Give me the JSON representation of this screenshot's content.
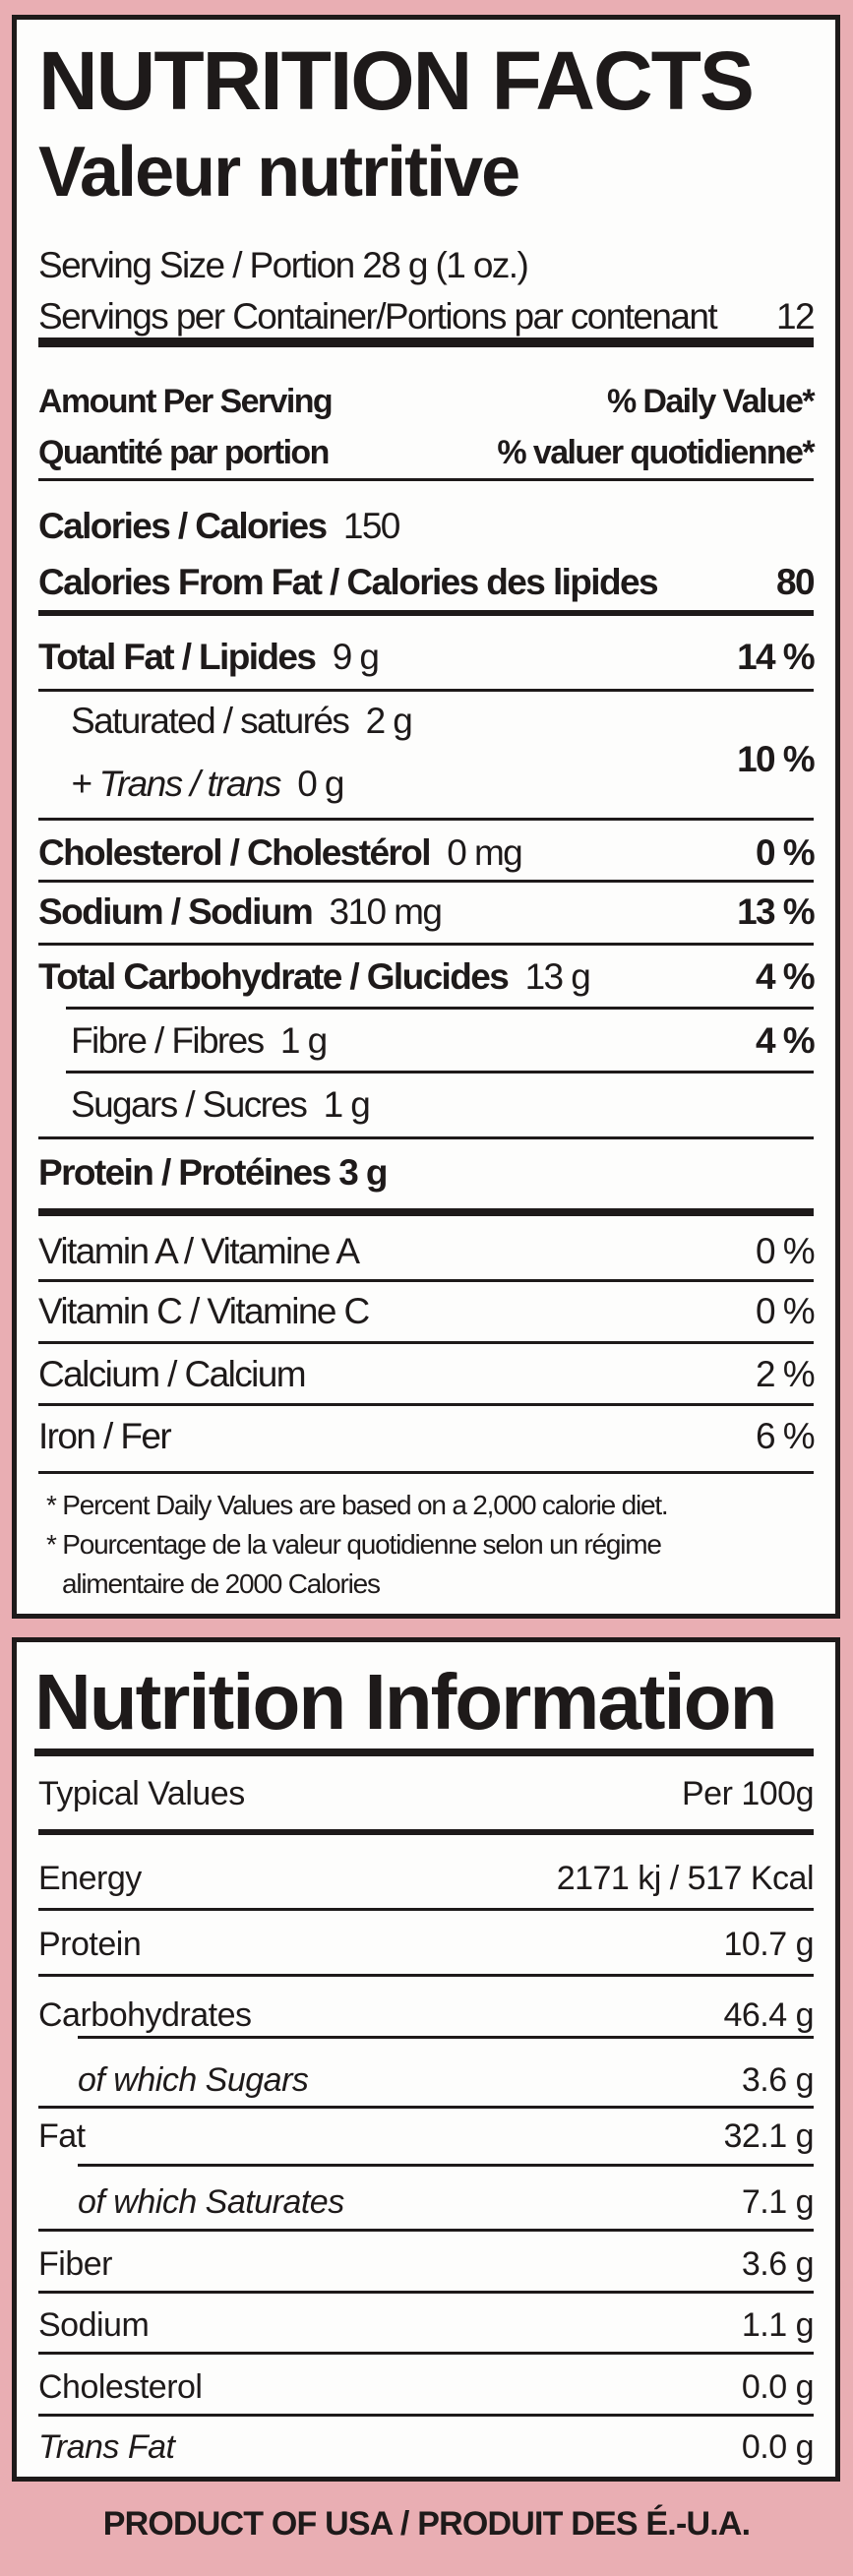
{
  "facts": {
    "title": "NUTRITION FACTS",
    "title_fr": "Valeur nutritive",
    "serving_size": "Serving Size / Portion 28 g (1 oz.)",
    "servings_label": "Servings per Container/Portions par contenant",
    "servings_value": "12",
    "amount_label": "Amount Per Serving",
    "dv_label": "% Daily Value*",
    "amount_label_fr": "Quantité par portion",
    "dv_label_fr": "% valuer quotidienne*",
    "calories_label": "Calories / Calories",
    "calories_value": "150",
    "fat_cal_label": "Calories From Fat / Calories des lipides",
    "fat_cal_value": "80",
    "rows": [
      {
        "label": "Total Fat / Lipides",
        "amount": "9 g",
        "dv": "14 %"
      },
      {
        "label": "Saturated / saturés",
        "amount": "2 g",
        "dv": "10 %"
      },
      {
        "label": "+ Trans / trans",
        "amount": "0 g"
      },
      {
        "label": "Cholesterol / Cholestérol",
        "amount": "0 mg",
        "dv": "0 %"
      },
      {
        "label": "Sodium / Sodium",
        "amount": "310 mg",
        "dv": "13 %"
      },
      {
        "label": "Total Carbohydrate / Glucides",
        "amount": "13 g",
        "dv": "4 %"
      },
      {
        "label": "Fibre / Fibres",
        "amount": "1 g",
        "dv": "4 %"
      },
      {
        "label": "Sugars / Sucres",
        "amount": "1 g"
      },
      {
        "label": "Protein / Protéines",
        "amount": "3 g"
      }
    ],
    "vitamins": [
      {
        "label": "Vitamin A / Vitamine A",
        "dv": "0 %"
      },
      {
        "label": "Vitamin C / Vitamine C",
        "dv": "0 %"
      },
      {
        "label": "Calcium / Calcium",
        "dv": "2 %"
      },
      {
        "label": "Iron / Fer",
        "dv": "6 %"
      }
    ],
    "footnote_en": "* Percent Daily Values are based on a 2,000 calorie diet.",
    "footnote_fr_1": "* Pourcentage de la valeur quotidienne selon un régime",
    "footnote_fr_2": "alimentaire de 2000 Calories"
  },
  "info": {
    "title": "Nutrition Information",
    "col_label": "Typical Values",
    "col_value": "Per 100g",
    "rows": [
      {
        "label": "Energy",
        "value": "2171 kj / 517 Kcal"
      },
      {
        "label": "Protein",
        "value": "10.7 g"
      },
      {
        "label": "Carbohydrates",
        "value": "46.4 g"
      },
      {
        "label": "of which Sugars",
        "value": "3.6 g"
      },
      {
        "label": "Fat",
        "value": "32.1 g"
      },
      {
        "label": "of which Saturates",
        "value": "7.1 g"
      },
      {
        "label": "Fiber",
        "value": "3.6 g"
      },
      {
        "label": "Sodium",
        "value": "1.1 g"
      },
      {
        "label": "Cholesterol",
        "value": "0.0 g"
      },
      {
        "label": "Trans Fat",
        "value": "0.0 g"
      }
    ]
  },
  "footer": "PRODUCT OF USA / PRODUIT DES É.-U.A."
}
